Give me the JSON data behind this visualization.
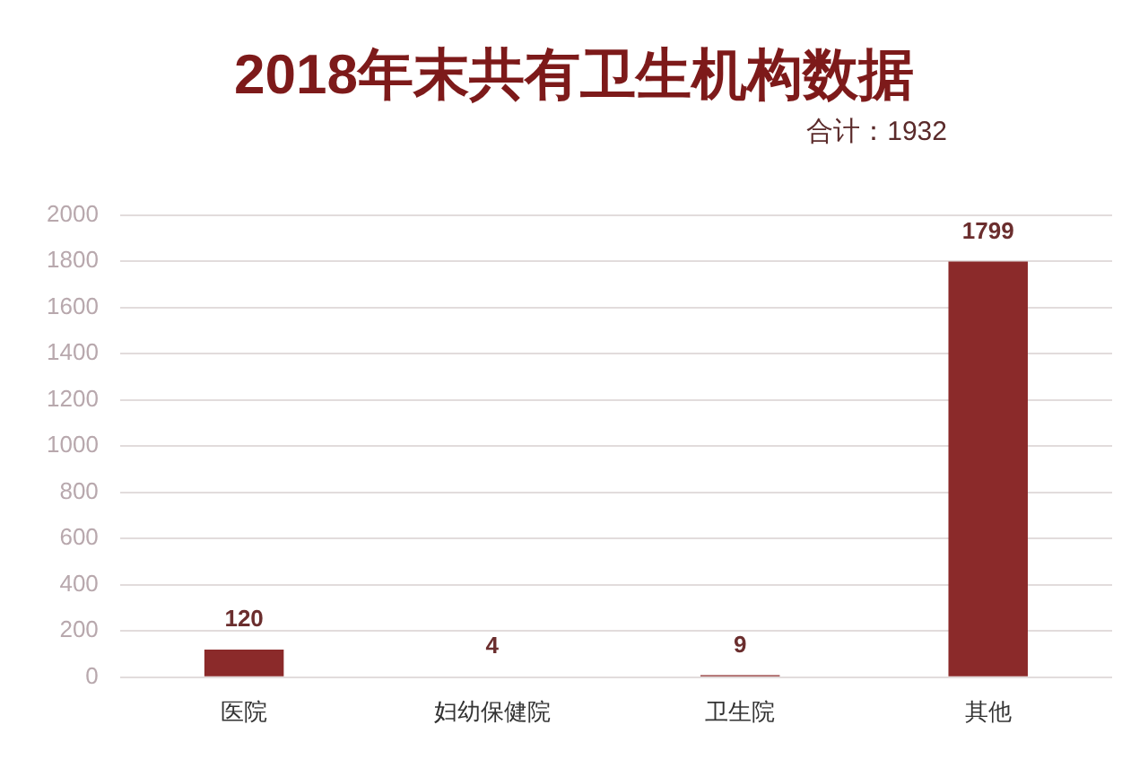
{
  "chart_data": {
    "type": "bar",
    "title": "2018年末共有卫生机构数据",
    "subtitle": "合计：1932",
    "categories": [
      "医院",
      "妇幼保健院",
      "卫生院",
      "其他"
    ],
    "values": [
      120,
      4,
      9,
      1799
    ],
    "color": "#8b2a2a",
    "ylim": [
      0,
      2000
    ],
    "yticks": [
      0,
      200,
      400,
      600,
      800,
      1000,
      1200,
      1400,
      1600,
      1800,
      2000
    ],
    "grid": "y",
    "data_labels": true
  }
}
